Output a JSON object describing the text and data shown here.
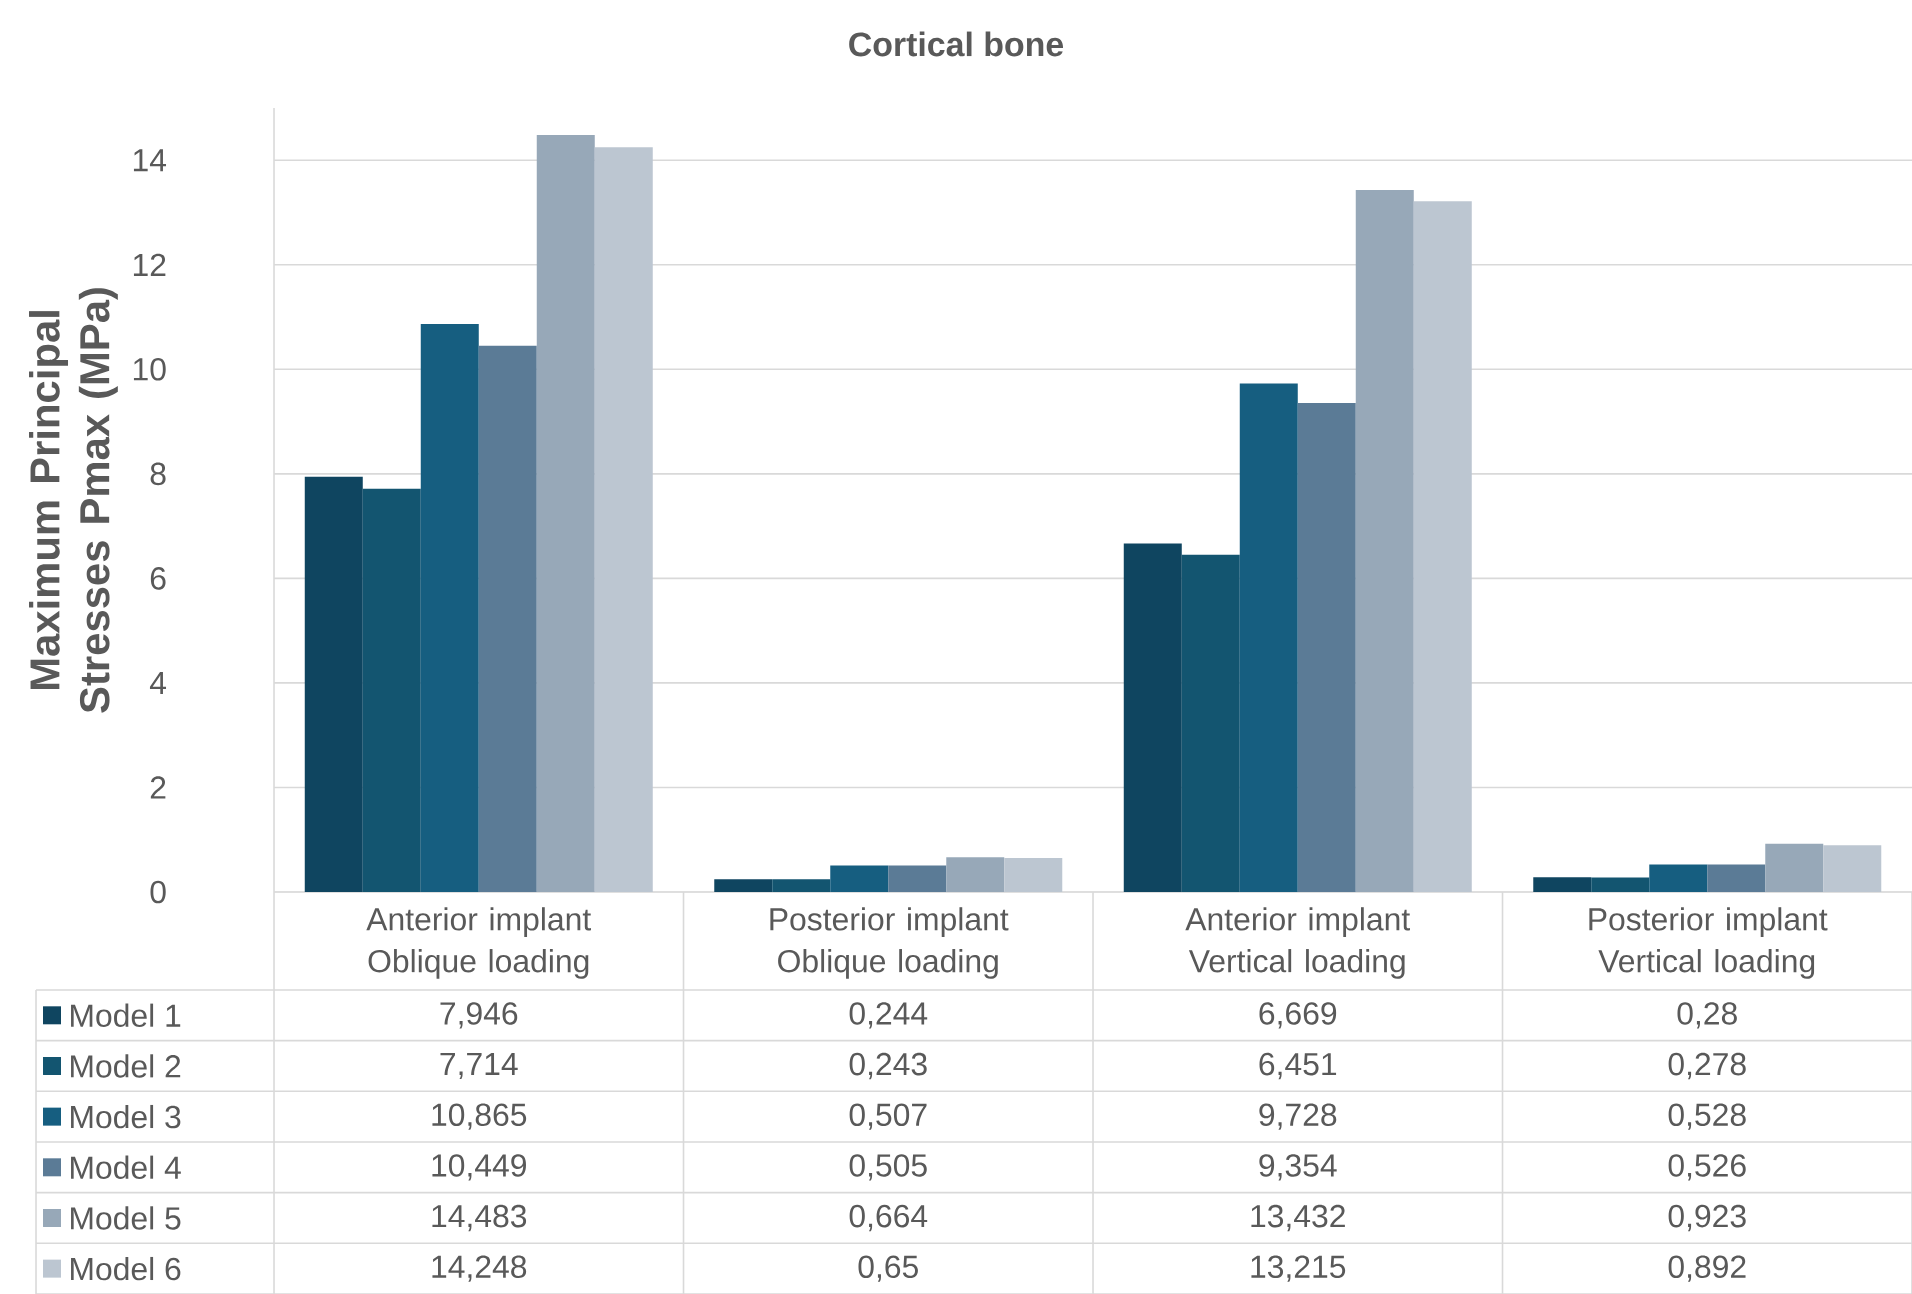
{
  "chart_data": {
    "type": "bar",
    "title": "Cortical bone",
    "ylabel": "Maximum Principal Stresses Pmax (MPa)",
    "categories": [
      "Anterior implant Oblique loading",
      "Posterior implant Oblique loading",
      "Anterior implant Vertical loading",
      "Posterior implant Vertical loading"
    ],
    "series": [
      {
        "name": "Model 1",
        "color": "#0f4560",
        "values": [
          7.946,
          0.244,
          6.669,
          0.28
        ],
        "value_labels": [
          "7,946",
          "0,244",
          "6,669",
          "0,28"
        ]
      },
      {
        "name": "Model 2",
        "color": "#135570",
        "values": [
          7.714,
          0.243,
          6.451,
          0.278
        ],
        "value_labels": [
          "7,714",
          "0,243",
          "6,451",
          "0,278"
        ]
      },
      {
        "name": "Model 3",
        "color": "#165e80",
        "values": [
          10.865,
          0.507,
          9.728,
          0.528
        ],
        "value_labels": [
          "10,865",
          "0,507",
          "9,728",
          "0,528"
        ]
      },
      {
        "name": "Model 4",
        "color": "#5b7b96",
        "values": [
          10.449,
          0.505,
          9.354,
          0.526
        ],
        "value_labels": [
          "10,449",
          "0,505",
          "9,354",
          "0,526"
        ]
      },
      {
        "name": "Model 5",
        "color": "#97a8b8",
        "values": [
          14.483,
          0.664,
          13.432,
          0.923
        ],
        "value_labels": [
          "14,483",
          "0,664",
          "13,432",
          "0,923"
        ]
      },
      {
        "name": "Model 6",
        "color": "#bcc6d1",
        "values": [
          14.248,
          0.65,
          13.215,
          0.892
        ],
        "value_labels": [
          "14,248",
          "0,65",
          "13,215",
          "0,892"
        ]
      }
    ],
    "ylim": [
      0,
      15
    ],
    "yticks": [
      0,
      2,
      4,
      6,
      8,
      10,
      12,
      14
    ],
    "grid": "y",
    "legend": "bottom"
  }
}
